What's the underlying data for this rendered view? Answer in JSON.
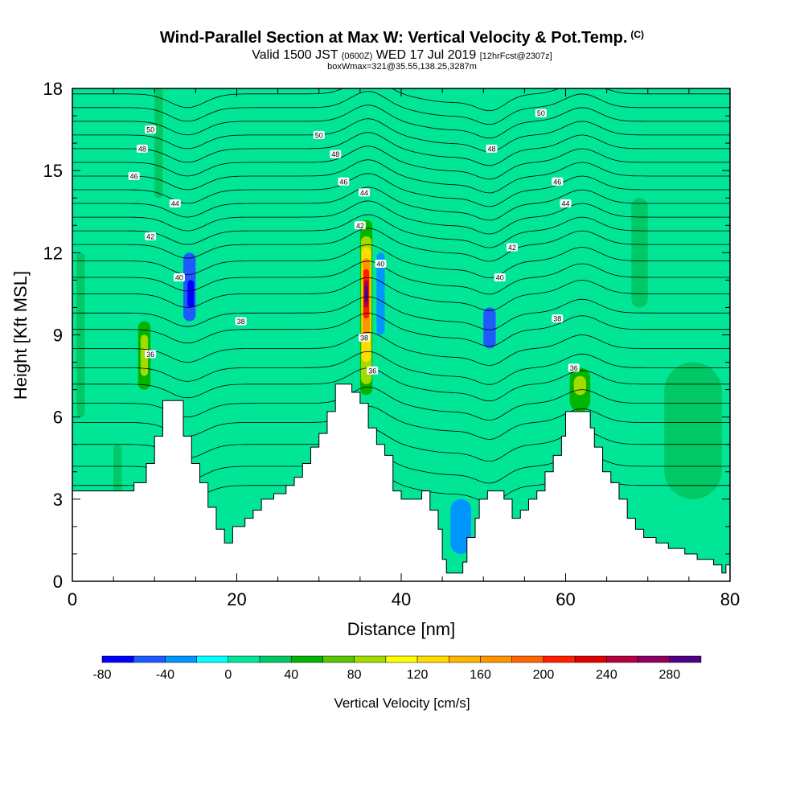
{
  "header": {
    "title": "Wind-Parallel Section at Max W: Vertical Velocity & Pot.Temp.",
    "copyright": "(C)",
    "valid_prefix": "Valid 1500 JST",
    "valid_utc": "(0600Z)",
    "valid_date": "WED 17 Jul 2019",
    "forecast": "[12hrFcst@2307z]",
    "boxwmax": "boxWmax=321@35.55,138.25,3287m"
  },
  "chart_data": {
    "type": "heatmap",
    "xlabel": "Distance [nm]",
    "ylabel": "Height [Kft MSL]",
    "xlim": [
      0,
      80
    ],
    "ylim": [
      0,
      18
    ],
    "x_ticks": [
      0,
      20,
      40,
      60,
      80
    ],
    "y_ticks": [
      0,
      3,
      6,
      9,
      12,
      15,
      18
    ],
    "colorbar": {
      "label": "Vertical Velocity [cm/s]",
      "tick_labels": [
        "-80",
        "-40",
        "0",
        "40",
        "80",
        "120",
        "160",
        "200",
        "240",
        "280"
      ],
      "levels": [
        -80,
        -60,
        -40,
        -20,
        0,
        20,
        40,
        60,
        80,
        100,
        120,
        140,
        160,
        180,
        200,
        220,
        240,
        260,
        280,
        300
      ],
      "colors": [
        "#0000ff",
        "#1e5aff",
        "#0096ff",
        "#00ffff",
        "#00e696",
        "#00c864",
        "#00b400",
        "#5ac800",
        "#a0dc00",
        "#ffff00",
        "#ffdc00",
        "#ffb400",
        "#ff9600",
        "#ff6400",
        "#ff1e00",
        "#dc0000",
        "#b4003c",
        "#8c0064",
        "#500082"
      ]
    },
    "background_w": 0,
    "terrain": [
      {
        "x": 0,
        "h": 3.3
      },
      {
        "x": 7.5,
        "h": 3.6
      },
      {
        "x": 9,
        "h": 4.3
      },
      {
        "x": 10,
        "h": 5.3
      },
      {
        "x": 11,
        "h": 6.6
      },
      {
        "x": 13.5,
        "h": 5.3
      },
      {
        "x": 14.5,
        "h": 4.3
      },
      {
        "x": 15.5,
        "h": 3.6
      },
      {
        "x": 16.5,
        "h": 2.7
      },
      {
        "x": 17.5,
        "h": 1.9
      },
      {
        "x": 18.5,
        "h": 1.4
      },
      {
        "x": 19.5,
        "h": 2.0
      },
      {
        "x": 21,
        "h": 2.3
      },
      {
        "x": 22,
        "h": 2.6
      },
      {
        "x": 23,
        "h": 3.0
      },
      {
        "x": 24.5,
        "h": 3.2
      },
      {
        "x": 26,
        "h": 3.5
      },
      {
        "x": 27,
        "h": 3.8
      },
      {
        "x": 28,
        "h": 4.3
      },
      {
        "x": 29,
        "h": 4.9
      },
      {
        "x": 30,
        "h": 5.4
      },
      {
        "x": 31,
        "h": 6.2
      },
      {
        "x": 32,
        "h": 7.2
      },
      {
        "x": 34,
        "h": 6.9
      },
      {
        "x": 35,
        "h": 6.5
      },
      {
        "x": 36,
        "h": 5.6
      },
      {
        "x": 37,
        "h": 5.0
      },
      {
        "x": 38,
        "h": 4.6
      },
      {
        "x": 39,
        "h": 3.3
      },
      {
        "x": 40,
        "h": 3.0
      },
      {
        "x": 42.5,
        "h": 3.3
      },
      {
        "x": 43.5,
        "h": 2.6
      },
      {
        "x": 44.5,
        "h": 1.9
      },
      {
        "x": 45,
        "h": 0.8
      },
      {
        "x": 45.5,
        "h": 0.3
      },
      {
        "x": 47.5,
        "h": 0.7
      },
      {
        "x": 48,
        "h": 1.6
      },
      {
        "x": 49,
        "h": 2.3
      },
      {
        "x": 49.5,
        "h": 3.0
      },
      {
        "x": 50.5,
        "h": 3.3
      },
      {
        "x": 52.5,
        "h": 3.0
      },
      {
        "x": 53.5,
        "h": 2.3
      },
      {
        "x": 54.5,
        "h": 2.6
      },
      {
        "x": 55.5,
        "h": 3.0
      },
      {
        "x": 56.5,
        "h": 3.3
      },
      {
        "x": 57.5,
        "h": 4.0
      },
      {
        "x": 58.5,
        "h": 4.6
      },
      {
        "x": 59.5,
        "h": 5.3
      },
      {
        "x": 60,
        "h": 6.2
      },
      {
        "x": 63,
        "h": 5.6
      },
      {
        "x": 63.5,
        "h": 4.9
      },
      {
        "x": 64.5,
        "h": 4.0
      },
      {
        "x": 65.5,
        "h": 3.6
      },
      {
        "x": 66.5,
        "h": 3.0
      },
      {
        "x": 67.5,
        "h": 2.3
      },
      {
        "x": 68.5,
        "h": 1.9
      },
      {
        "x": 69.5,
        "h": 1.6
      },
      {
        "x": 71,
        "h": 1.4
      },
      {
        "x": 72.5,
        "h": 1.2
      },
      {
        "x": 74.5,
        "h": 1.0
      },
      {
        "x": 76,
        "h": 0.8
      },
      {
        "x": 78,
        "h": 0.6
      },
      {
        "x": 79,
        "h": 0.3
      },
      {
        "x": 79.5,
        "h": 0.6
      },
      {
        "x": 80.5,
        "h": 0
      }
    ],
    "w_cells": [
      {
        "x0": 35,
        "x1": 36.5,
        "y0": 6.8,
        "y1": 13.2,
        "w": 40
      },
      {
        "x0": 35.1,
        "x1": 36.4,
        "y0": 7.2,
        "y1": 12.6,
        "w": 80
      },
      {
        "x0": 35.2,
        "x1": 36.3,
        "y0": 8.0,
        "y1": 12.2,
        "w": 120
      },
      {
        "x0": 35.3,
        "x1": 36.2,
        "y0": 9.0,
        "y1": 11.8,
        "w": 160
      },
      {
        "x0": 35.4,
        "x1": 36.1,
        "y0": 9.6,
        "y1": 11.4,
        "w": 200
      },
      {
        "x0": 35.5,
        "x1": 36.0,
        "y0": 10.0,
        "y1": 11.0,
        "w": 240
      },
      {
        "x0": 35.55,
        "x1": 35.95,
        "y0": 10.2,
        "y1": 10.8,
        "w": 280
      },
      {
        "x0": 8,
        "x1": 9.5,
        "y0": 7.0,
        "y1": 9.5,
        "w": 40
      },
      {
        "x0": 8.3,
        "x1": 9.2,
        "y0": 7.5,
        "y1": 9.0,
        "w": 80
      },
      {
        "x0": 60.5,
        "x1": 63,
        "y0": 6.2,
        "y1": 7.8,
        "w": 40
      },
      {
        "x0": 61,
        "x1": 62.5,
        "y0": 6.8,
        "y1": 7.5,
        "w": 80
      },
      {
        "x0": 13.5,
        "x1": 15,
        "y0": 9.5,
        "y1": 12,
        "w": -60
      },
      {
        "x0": 14,
        "x1": 14.8,
        "y0": 10,
        "y1": 11,
        "w": -80
      },
      {
        "x0": 37,
        "x1": 38,
        "y0": 9,
        "y1": 12,
        "w": -40
      },
      {
        "x0": 50,
        "x1": 51.5,
        "y0": 8.5,
        "y1": 10,
        "w": -60
      },
      {
        "x0": 46,
        "x1": 48.5,
        "y0": 1.0,
        "y1": 3.0,
        "w": -40
      },
      {
        "x0": 5,
        "x1": 6,
        "y0": 2,
        "y1": 5,
        "w": 20
      },
      {
        "x0": 72,
        "x1": 79,
        "y0": 3,
        "y1": 8,
        "w": 20
      },
      {
        "x0": 0.5,
        "x1": 1.5,
        "y0": 6,
        "y1": 12,
        "w": 20
      },
      {
        "x0": 10,
        "x1": 11,
        "y0": 14,
        "y1": 18,
        "w": 20
      },
      {
        "x0": 68,
        "x1": 70,
        "y0": 10,
        "y1": 14,
        "w": 20
      }
    ],
    "theta_contours": [
      {
        "base": 3.5
      },
      {
        "base": 4.2
      },
      {
        "base": 5.0
      },
      {
        "base": 5.8
      },
      {
        "base": 6.5
      },
      {
        "base": 7.2
      },
      {
        "base": 7.8
      },
      {
        "base": 8.5
      },
      {
        "base": 9.2
      },
      {
        "base": 9.8
      },
      {
        "base": 10.5
      },
      {
        "base": 11.1
      },
      {
        "base": 11.7
      },
      {
        "base": 12.3
      },
      {
        "base": 12.8
      },
      {
        "base": 13.3
      },
      {
        "base": 13.8
      },
      {
        "base": 14.3
      },
      {
        "base": 14.8
      },
      {
        "base": 15.3
      },
      {
        "base": 15.8
      },
      {
        "base": 16.3
      },
      {
        "base": 16.8
      },
      {
        "base": 17.3
      },
      {
        "base": 17.8
      }
    ],
    "contour_labels": [
      {
        "text": "50",
        "x": 9.5,
        "y": 16.5
      },
      {
        "text": "48",
        "x": 8.5,
        "y": 15.8
      },
      {
        "text": "46",
        "x": 7.5,
        "y": 14.8
      },
      {
        "text": "44",
        "x": 12.5,
        "y": 13.8
      },
      {
        "text": "42",
        "x": 9.5,
        "y": 12.6
      },
      {
        "text": "40",
        "x": 13,
        "y": 11.1
      },
      {
        "text": "38",
        "x": 20.5,
        "y": 9.5
      },
      {
        "text": "36",
        "x": 9.5,
        "y": 8.3
      },
      {
        "text": "50",
        "x": 30,
        "y": 16.3
      },
      {
        "text": "48",
        "x": 32,
        "y": 15.6
      },
      {
        "text": "46",
        "x": 33,
        "y": 14.6
      },
      {
        "text": "44",
        "x": 35.5,
        "y": 14.2
      },
      {
        "text": "42",
        "x": 35,
        "y": 13.0
      },
      {
        "text": "40",
        "x": 37.5,
        "y": 11.6
      },
      {
        "text": "38",
        "x": 35.5,
        "y": 8.9
      },
      {
        "text": "36",
        "x": 36.5,
        "y": 7.7
      },
      {
        "text": "50",
        "x": 57,
        "y": 17.1
      },
      {
        "text": "48",
        "x": 51,
        "y": 15.8
      },
      {
        "text": "46",
        "x": 59,
        "y": 14.6
      },
      {
        "text": "44",
        "x": 60,
        "y": 13.8
      },
      {
        "text": "42",
        "x": 53.5,
        "y": 12.2
      },
      {
        "text": "40",
        "x": 52,
        "y": 11.1
      },
      {
        "text": "38",
        "x": 59,
        "y": 9.6
      },
      {
        "text": "36",
        "x": 61,
        "y": 7.8
      }
    ]
  }
}
